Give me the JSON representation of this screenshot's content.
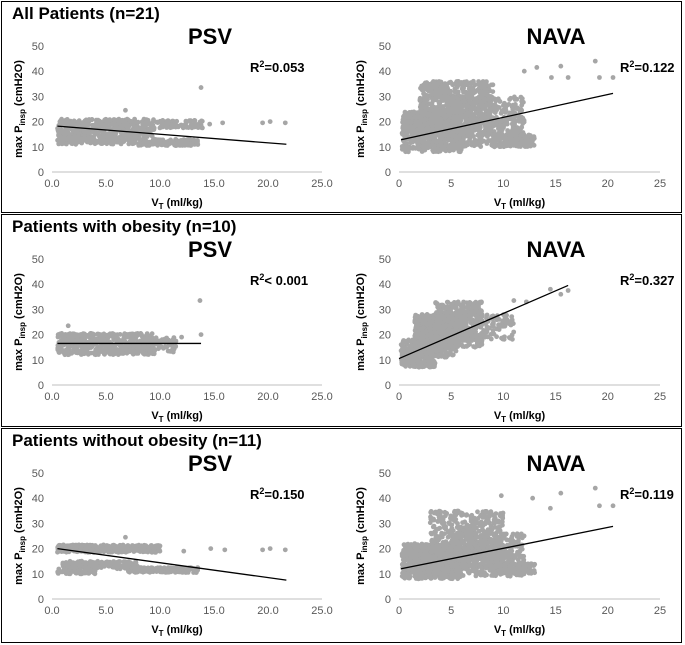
{
  "figure": {
    "sections": [
      {
        "title": "All Patients (n=21)"
      },
      {
        "title": "Patients with obesity (n=10)"
      },
      {
        "title": "Patients without obesity (n=11)"
      }
    ]
  },
  "chart_data": [
    {
      "type": "scatter",
      "section": "All Patients (n=21)",
      "title": "PSV",
      "r2_prefix": "R",
      "r2_sup": "2",
      "r2_suffix": "=0.053",
      "ylabel": "max P",
      "ylabel_sub": "insp",
      "ylabel_unit": " (cmH2O)",
      "xlabel": "V",
      "xlabel_sub": "T",
      "xlabel_unit": " (ml/kg)",
      "xlim": [
        0,
        25
      ],
      "ylim": [
        0,
        50
      ],
      "xticks": [
        "0.0",
        "5.0",
        "10.0",
        "15.0",
        "20.0",
        "25.0"
      ],
      "yticks": [
        "0",
        "10",
        "20",
        "30",
        "40",
        "50"
      ],
      "trendline": {
        "x": [
          0.5,
          21.7
        ],
        "y": [
          18.2,
          11.0
        ]
      },
      "clusters": [
        {
          "x": [
            0.5,
            9.5
          ],
          "y": [
            14,
            21
          ],
          "n": 420
        },
        {
          "x": [
            0.5,
            8
          ],
          "y": [
            11,
            14
          ],
          "n": 160
        },
        {
          "x": [
            8,
            13.5
          ],
          "y": [
            10.5,
            13
          ],
          "n": 160
        },
        {
          "x": [
            9.5,
            14
          ],
          "y": [
            17.5,
            20.5
          ],
          "n": 80
        }
      ],
      "points": [
        {
          "x": 13.8,
          "y": 33.5
        },
        {
          "x": 19.5,
          "y": 19.5
        },
        {
          "x": 20.2,
          "y": 20.0
        },
        {
          "x": 21.6,
          "y": 19.5
        },
        {
          "x": 15.8,
          "y": 19.5
        },
        {
          "x": 14.6,
          "y": 19.0
        },
        {
          "x": 6.8,
          "y": 24.5
        }
      ]
    },
    {
      "type": "scatter",
      "section": "All Patients (n=21)",
      "title": "NAVA",
      "r2_prefix": "R",
      "r2_sup": "2",
      "r2_suffix": "=0.122",
      "ylabel": "max P",
      "ylabel_sub": "insp",
      "ylabel_unit": " (cmH2O)",
      "xlabel": "V",
      "xlabel_sub": "T",
      "xlabel_unit": " (ml/kg)",
      "xlim": [
        0,
        25
      ],
      "ylim": [
        0,
        50
      ],
      "xticks": [
        "0",
        "5",
        "10",
        "15",
        "20",
        "25"
      ],
      "yticks": [
        "0",
        "10",
        "20",
        "30",
        "40",
        "50"
      ],
      "trendline": {
        "x": [
          0.2,
          20.5
        ],
        "y": [
          12.8,
          31.2
        ]
      },
      "clusters": [
        {
          "x": [
            0.3,
            6
          ],
          "y": [
            8,
            24
          ],
          "n": 600
        },
        {
          "x": [
            2,
            9
          ],
          "y": [
            14,
            36
          ],
          "n": 700
        },
        {
          "x": [
            5,
            12
          ],
          "y": [
            10,
            30
          ],
          "n": 400
        },
        {
          "x": [
            9,
            13
          ],
          "y": [
            10,
            15
          ],
          "n": 150
        }
      ],
      "points": [
        {
          "x": 18.8,
          "y": 44
        },
        {
          "x": 15.5,
          "y": 42
        },
        {
          "x": 16.2,
          "y": 37.5
        },
        {
          "x": 13.2,
          "y": 41.5
        },
        {
          "x": 12,
          "y": 40
        },
        {
          "x": 19.2,
          "y": 37.5
        },
        {
          "x": 20.5,
          "y": 37.5
        },
        {
          "x": 14.6,
          "y": 37.5
        }
      ]
    },
    {
      "type": "scatter",
      "section": "Patients with obesity (n=10)",
      "title": "PSV",
      "r2_prefix": "R",
      "r2_sup": "2",
      "r2_suffix": "< 0.001",
      "ylabel": "max P",
      "ylabel_sub": "insp",
      "ylabel_unit": " (cmH2O)",
      "xlabel": "V",
      "xlabel_sub": "T",
      "xlabel_unit": " (ml/kg)",
      "xlim": [
        0,
        25
      ],
      "ylim": [
        0,
        50
      ],
      "xticks": [
        "0.0",
        "5.0",
        "10.0",
        "15.0",
        "20.0",
        "25.0"
      ],
      "yticks": [
        "0",
        "10",
        "20",
        "30",
        "40",
        "50"
      ],
      "trendline": {
        "x": [
          0.5,
          13.8
        ],
        "y": [
          16.5,
          16.5
        ]
      },
      "clusters": [
        {
          "x": [
            0.5,
            9.5
          ],
          "y": [
            12,
            20.5
          ],
          "n": 500
        },
        {
          "x": [
            9,
            11.5
          ],
          "y": [
            13,
            19
          ],
          "n": 60
        }
      ],
      "points": [
        {
          "x": 13.7,
          "y": 33.5
        },
        {
          "x": 13.8,
          "y": 20.0
        },
        {
          "x": 12.0,
          "y": 19.0
        },
        {
          "x": 1.5,
          "y": 23.5
        }
      ]
    },
    {
      "type": "scatter",
      "section": "Patients with obesity (n=10)",
      "title": "NAVA",
      "r2_prefix": "R",
      "r2_sup": "2",
      "r2_suffix": "=0.327",
      "ylabel": "max P",
      "ylabel_sub": "insp",
      "ylabel_unit": " (cmH2O)",
      "xlabel": "V",
      "xlabel_sub": "T",
      "xlabel_unit": " (ml/kg)",
      "xlim": [
        0,
        25
      ],
      "ylim": [
        0,
        50
      ],
      "xticks": [
        "0",
        "5",
        "10",
        "15",
        "20",
        "25"
      ],
      "yticks": [
        "0",
        "10",
        "20",
        "30",
        "40",
        "50"
      ],
      "trendline": {
        "x": [
          0,
          16.2
        ],
        "y": [
          10.5,
          39.5
        ]
      },
      "clusters": [
        {
          "x": [
            0.2,
            3.5
          ],
          "y": [
            7,
            18
          ],
          "n": 300
        },
        {
          "x": [
            1.5,
            5.5
          ],
          "y": [
            11,
            28
          ],
          "n": 500
        },
        {
          "x": [
            3.5,
            8
          ],
          "y": [
            15,
            33
          ],
          "n": 400
        },
        {
          "x": [
            6,
            11
          ],
          "y": [
            18,
            28
          ],
          "n": 120
        }
      ],
      "points": [
        {
          "x": 15.5,
          "y": 36
        },
        {
          "x": 16.2,
          "y": 37.5
        },
        {
          "x": 14.5,
          "y": 38
        },
        {
          "x": 12.2,
          "y": 33
        },
        {
          "x": 11,
          "y": 33.5
        }
      ]
    },
    {
      "type": "scatter",
      "section": "Patients without obesity (n=11)",
      "title": "PSV",
      "r2_prefix": "R",
      "r2_sup": "2",
      "r2_suffix": "=0.150",
      "ylabel": "max P",
      "ylabel_sub": "insp",
      "ylabel_unit": " (cmH2O)",
      "xlabel": "V",
      "xlabel_sub": "T",
      "xlabel_unit": " (ml/kg)",
      "xlim": [
        0,
        25
      ],
      "ylim": [
        0,
        50
      ],
      "xticks": [
        "0.0",
        "5.0",
        "10.0",
        "15.0",
        "20.0",
        "25.0"
      ],
      "yticks": [
        "0",
        "10",
        "20",
        "30",
        "40",
        "50"
      ],
      "trendline": {
        "x": [
          0.5,
          21.7
        ],
        "y": [
          20.0,
          7.5
        ]
      },
      "clusters": [
        {
          "x": [
            0.5,
            10
          ],
          "y": [
            18.5,
            21.5
          ],
          "n": 400
        },
        {
          "x": [
            1,
            8
          ],
          "y": [
            12,
            15
          ],
          "n": 200
        },
        {
          "x": [
            0.5,
            4
          ],
          "y": [
            10,
            12
          ],
          "n": 60
        },
        {
          "x": [
            7,
            13.5
          ],
          "y": [
            10.5,
            12.5
          ],
          "n": 200
        }
      ],
      "points": [
        {
          "x": 19.5,
          "y": 19.5
        },
        {
          "x": 20.2,
          "y": 20.0
        },
        {
          "x": 21.6,
          "y": 19.5
        },
        {
          "x": 16,
          "y": 19.5
        },
        {
          "x": 14.7,
          "y": 20
        },
        {
          "x": 6.8,
          "y": 24.5
        },
        {
          "x": 12.2,
          "y": 19
        }
      ]
    },
    {
      "type": "scatter",
      "section": "Patients without obesity (n=11)",
      "title": "NAVA",
      "r2_prefix": "R",
      "r2_sup": "2",
      "r2_suffix": "=0.119",
      "ylabel": "max P",
      "ylabel_sub": "insp",
      "ylabel_unit": " (cmH2O)",
      "xlabel": "V",
      "xlabel_sub": "T",
      "xlabel_unit": " (ml/kg)",
      "xlim": [
        0,
        25
      ],
      "ylim": [
        0,
        50
      ],
      "xticks": [
        "0",
        "5",
        "10",
        "15",
        "20",
        "25"
      ],
      "yticks": [
        "0",
        "10",
        "20",
        "30",
        "40",
        "50"
      ],
      "trendline": {
        "x": [
          0.2,
          20.5
        ],
        "y": [
          12.0,
          28.8
        ]
      },
      "clusters": [
        {
          "x": [
            0.3,
            6
          ],
          "y": [
            8,
            22
          ],
          "n": 550
        },
        {
          "x": [
            3,
            10
          ],
          "y": [
            12,
            35
          ],
          "n": 500
        },
        {
          "x": [
            5,
            12
          ],
          "y": [
            9,
            26
          ],
          "n": 400
        },
        {
          "x": [
            9,
            13
          ],
          "y": [
            10,
            14
          ],
          "n": 150
        }
      ],
      "points": [
        {
          "x": 18.8,
          "y": 44
        },
        {
          "x": 15.5,
          "y": 42
        },
        {
          "x": 12.8,
          "y": 40
        },
        {
          "x": 19.2,
          "y": 37
        },
        {
          "x": 20.5,
          "y": 37
        },
        {
          "x": 14.5,
          "y": 36
        },
        {
          "x": 9.8,
          "y": 41
        }
      ]
    }
  ]
}
